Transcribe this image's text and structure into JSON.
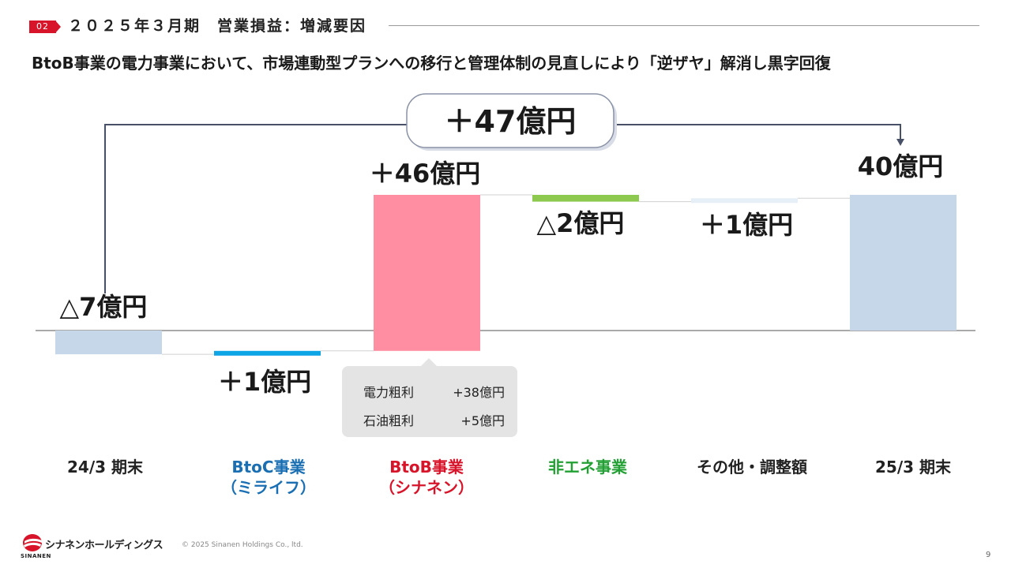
{
  "header": {
    "section_number": "02",
    "title": "２０２５年３月期　営業損益：増減要因",
    "subtitle": "BtoB事業の電力事業において、市場連動型プランへの移行と管理体制の見直しにより「逆ザヤ」解消し黒字回復"
  },
  "chart_data": {
    "type": "bar",
    "subtype": "waterfall",
    "categories": [
      "24/3 期末",
      "BtoC事業（ミライフ）",
      "BtoB事業（シナネン）",
      "非エネ事業",
      "その他・調整額",
      "25/3 期末"
    ],
    "values": [
      -7,
      1,
      46,
      -2,
      1,
      40
    ],
    "measures": [
      "absolute",
      "relative",
      "relative",
      "relative",
      "relative",
      "total"
    ],
    "value_labels": [
      "△7億円",
      "＋1億円",
      "＋46億円",
      "△2億円",
      "＋1億円",
      "40億円"
    ],
    "total_change_label": "＋47億円",
    "category_lines": [
      [
        "24/3 期末"
      ],
      [
        "BtoC事業",
        "（ミライフ）"
      ],
      [
        "BtoB事業",
        "（シナネン）"
      ],
      [
        "非エネ事業"
      ],
      [
        "その他・調整額"
      ],
      [
        "25/3 期末"
      ]
    ],
    "colors": [
      "#c6d7ea",
      "#0ea5e6",
      "#ff8ea3",
      "#8dc94e",
      "#e6eef8",
      "#c6d7ea"
    ],
    "category_label_colors": [
      "#222222",
      "#1a6fb3",
      "#d7142a",
      "#22a033",
      "#222222",
      "#222222"
    ],
    "annotation": {
      "items": [
        {
          "label": "電力粗利",
          "value": "+38億円"
        },
        {
          "label": "石油粗利",
          "value": "+5億円"
        }
      ]
    }
  },
  "footer": {
    "logo_text": "シナネンホールディングス",
    "logo_sub": "SINANEN",
    "copyright": "© 2025 Sinanen Holdings Co., ltd.",
    "page_number": "9"
  }
}
